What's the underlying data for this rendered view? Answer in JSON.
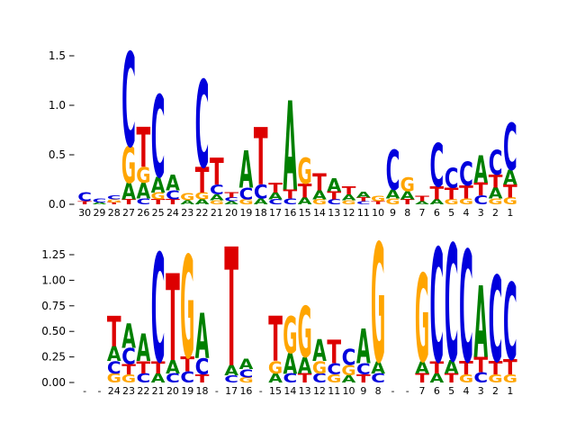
{
  "figure_title": "",
  "chart_style": {
    "background": "#ffffff",
    "tick_color": "#000000",
    "colors": {
      "A": "#008000",
      "C": "#0000dd",
      "G": "#ffa500",
      "T": "#dd0000"
    }
  },
  "chart_data": [
    {
      "type": "sequence_logo",
      "title": "",
      "xlabel": "",
      "ylabel": "",
      "ylim": [
        0,
        1.6
      ],
      "grid": false,
      "legend": "none",
      "yticks": [
        {
          "label": "0.0",
          "value": 0.0
        },
        {
          "label": "0.5",
          "value": 0.5
        },
        {
          "label": "1.0",
          "value": 1.0
        },
        {
          "label": "1.5",
          "value": 1.5
        }
      ],
      "positions": [
        {
          "label": "30",
          "stack": [
            [
              "T",
              0.03
            ],
            [
              "C",
              0.09
            ]
          ]
        },
        {
          "label": "29",
          "stack": [
            [
              "A",
              0.02
            ],
            [
              "C",
              0.04
            ]
          ]
        },
        {
          "label": "28",
          "stack": [
            [
              "T",
              0.02
            ],
            [
              "G",
              0.03
            ],
            [
              "C",
              0.04
            ]
          ]
        },
        {
          "label": "27",
          "stack": [
            [
              "T",
              0.05
            ],
            [
              "A",
              0.17
            ],
            [
              "G",
              0.37
            ],
            [
              "C",
              0.95
            ]
          ]
        },
        {
          "label": "26",
          "stack": [
            [
              "C",
              0.06
            ],
            [
              "A",
              0.16
            ],
            [
              "G",
              0.16
            ],
            [
              "T",
              0.4
            ]
          ]
        },
        {
          "label": "25",
          "stack": [
            [
              "T",
              0.05
            ],
            [
              "G",
              0.07
            ],
            [
              "A",
              0.16
            ],
            [
              "C",
              0.83
            ]
          ]
        },
        {
          "label": "24",
          "stack": [
            [
              "T",
              0.05
            ],
            [
              "C",
              0.09
            ],
            [
              "A",
              0.16
            ]
          ]
        },
        {
          "label": "23",
          "stack": [
            [
              "A",
              0.04
            ],
            [
              "G",
              0.07
            ]
          ]
        },
        {
          "label": "22",
          "stack": [
            [
              "A",
              0.05
            ],
            [
              "G",
              0.07
            ],
            [
              "T",
              0.26
            ],
            [
              "C",
              0.88
            ]
          ]
        },
        {
          "label": "21",
          "stack": [
            [
              "G",
              0.04
            ],
            [
              "A",
              0.06
            ],
            [
              "C",
              0.1
            ],
            [
              "T",
              0.27
            ]
          ]
        },
        {
          "label": "20",
          "stack": [
            [
              "A",
              0.03
            ],
            [
              "C",
              0.04
            ],
            [
              "T",
              0.05
            ]
          ]
        },
        {
          "label": "19",
          "stack": [
            [
              "G",
              0.05
            ],
            [
              "C",
              0.12
            ],
            [
              "A",
              0.38
            ]
          ]
        },
        {
          "label": "18",
          "stack": [
            [
              "A",
              0.06
            ],
            [
              "C",
              0.14
            ],
            [
              "T",
              0.58
            ]
          ]
        },
        {
          "label": "17",
          "stack": [
            [
              "C",
              0.05
            ],
            [
              "A",
              0.07
            ],
            [
              "T",
              0.1
            ]
          ]
        },
        {
          "label": "16",
          "stack": [
            [
              "C",
              0.06
            ],
            [
              "T",
              0.09
            ],
            [
              "A",
              0.9
            ]
          ]
        },
        {
          "label": "15",
          "stack": [
            [
              "A",
              0.07
            ],
            [
              "T",
              0.14
            ],
            [
              "G",
              0.26
            ]
          ]
        },
        {
          "label": "14",
          "stack": [
            [
              "G",
              0.05
            ],
            [
              "A",
              0.09
            ],
            [
              "T",
              0.17
            ]
          ]
        },
        {
          "label": "13",
          "stack": [
            [
              "C",
              0.05
            ],
            [
              "T",
              0.08
            ],
            [
              "A",
              0.13
            ]
          ]
        },
        {
          "label": "12",
          "stack": [
            [
              "G",
              0.04
            ],
            [
              "A",
              0.06
            ],
            [
              "T",
              0.08
            ]
          ]
        },
        {
          "label": "11",
          "stack": [
            [
              "C",
              0.03
            ],
            [
              "T",
              0.04
            ],
            [
              "A",
              0.06
            ]
          ]
        },
        {
          "label": "10",
          "stack": [
            [
              "T",
              0.03
            ],
            [
              "G",
              0.05
            ]
          ]
        },
        {
          "label": "9",
          "stack": [
            [
              "G",
              0.06
            ],
            [
              "A",
              0.09
            ],
            [
              "C",
              0.4
            ]
          ]
        },
        {
          "label": "8",
          "stack": [
            [
              "T",
              0.05
            ],
            [
              "A",
              0.08
            ],
            [
              "G",
              0.14
            ]
          ]
        },
        {
          "label": "7",
          "stack": [
            [
              "A",
              0.03
            ],
            [
              "T",
              0.05
            ]
          ]
        },
        {
          "label": "6",
          "stack": [
            [
              "A",
              0.05
            ],
            [
              "T",
              0.13
            ],
            [
              "C",
              0.44
            ]
          ]
        },
        {
          "label": "5",
          "stack": [
            [
              "G",
              0.05
            ],
            [
              "T",
              0.12
            ],
            [
              "C",
              0.2
            ]
          ]
        },
        {
          "label": "4",
          "stack": [
            [
              "G",
              0.06
            ],
            [
              "T",
              0.13
            ],
            [
              "C",
              0.24
            ]
          ]
        },
        {
          "label": "3",
          "stack": [
            [
              "C",
              0.09
            ],
            [
              "T",
              0.13
            ],
            [
              "A",
              0.28
            ]
          ]
        },
        {
          "label": "2",
          "stack": [
            [
              "G",
              0.06
            ],
            [
              "A",
              0.11
            ],
            [
              "T",
              0.13
            ],
            [
              "C",
              0.25
            ]
          ]
        },
        {
          "label": "1",
          "stack": [
            [
              "G",
              0.07
            ],
            [
              "T",
              0.13
            ],
            [
              "A",
              0.15
            ],
            [
              "C",
              0.47
            ]
          ]
        }
      ]
    },
    {
      "type": "sequence_logo",
      "title": "",
      "xlabel": "",
      "ylabel": "",
      "ylim": [
        0,
        1.45
      ],
      "grid": false,
      "legend": "none",
      "yticks": [
        {
          "label": "0.00",
          "value": 0.0
        },
        {
          "label": "0.25",
          "value": 0.25
        },
        {
          "label": "0.50",
          "value": 0.5
        },
        {
          "label": "0.75",
          "value": 0.75
        },
        {
          "label": "1.00",
          "value": 1.0
        },
        {
          "label": "1.25",
          "value": 1.25
        }
      ],
      "positions": [
        {
          "label": "-",
          "stack": []
        },
        {
          "label": "-",
          "stack": []
        },
        {
          "label": "24",
          "stack": [
            [
              "G",
              0.09
            ],
            [
              "C",
              0.12
            ],
            [
              "A",
              0.14
            ],
            [
              "T",
              0.3
            ]
          ]
        },
        {
          "label": "23",
          "stack": [
            [
              "G",
              0.08
            ],
            [
              "T",
              0.1
            ],
            [
              "C",
              0.16
            ],
            [
              "A",
              0.24
            ]
          ]
        },
        {
          "label": "22",
          "stack": [
            [
              "C",
              0.09
            ],
            [
              "T",
              0.12
            ],
            [
              "A",
              0.27
            ]
          ]
        },
        {
          "label": "21",
          "stack": [
            [
              "A",
              0.09
            ],
            [
              "T",
              0.12
            ],
            [
              "C",
              1.06
            ]
          ]
        },
        {
          "label": "20",
          "stack": [
            [
              "C",
              0.09
            ],
            [
              "A",
              0.13
            ],
            [
              "T",
              0.85
            ]
          ]
        },
        {
          "label": "19",
          "stack": [
            [
              "C",
              0.11
            ],
            [
              "T",
              0.14
            ],
            [
              "G",
              1.0
            ]
          ]
        },
        {
          "label": "18",
          "stack": [
            [
              "T",
              0.08
            ],
            [
              "C",
              0.16
            ],
            [
              "A",
              0.44
            ]
          ]
        },
        {
          "label": "-",
          "stack": []
        },
        {
          "label": "17",
          "stack": [
            [
              "C",
              0.07
            ],
            [
              "A",
              0.1
            ],
            [
              "T",
              1.16
            ]
          ]
        },
        {
          "label": "16",
          "stack": [
            [
              "G",
              0.05
            ],
            [
              "C",
              0.08
            ],
            [
              "A",
              0.1
            ]
          ]
        },
        {
          "label": "-",
          "stack": []
        },
        {
          "label": "15",
          "stack": [
            [
              "A",
              0.09
            ],
            [
              "G",
              0.12
            ],
            [
              "T",
              0.44
            ]
          ]
        },
        {
          "label": "14",
          "stack": [
            [
              "C",
              0.09
            ],
            [
              "A",
              0.2
            ],
            [
              "G",
              0.36
            ]
          ]
        },
        {
          "label": "13",
          "stack": [
            [
              "T",
              0.09
            ],
            [
              "A",
              0.16
            ],
            [
              "G",
              0.5
            ]
          ]
        },
        {
          "label": "12",
          "stack": [
            [
              "C",
              0.09
            ],
            [
              "G",
              0.12
            ],
            [
              "A",
              0.21
            ]
          ]
        },
        {
          "label": "11",
          "stack": [
            [
              "G",
              0.08
            ],
            [
              "C",
              0.11
            ],
            [
              "T",
              0.23
            ]
          ]
        },
        {
          "label": "10",
          "stack": [
            [
              "A",
              0.07
            ],
            [
              "G",
              0.1
            ],
            [
              "C",
              0.16
            ]
          ]
        },
        {
          "label": "9",
          "stack": [
            [
              "T",
              0.08
            ],
            [
              "C",
              0.11
            ],
            [
              "A",
              0.34
            ]
          ]
        },
        {
          "label": "8",
          "stack": [
            [
              "C",
              0.09
            ],
            [
              "A",
              0.12
            ],
            [
              "G",
              1.16
            ]
          ]
        },
        {
          "label": "-",
          "stack": []
        },
        {
          "label": "-",
          "stack": []
        },
        {
          "label": "7",
          "stack": [
            [
              "T",
              0.09
            ],
            [
              "A",
              0.12
            ],
            [
              "G",
              0.86
            ]
          ]
        },
        {
          "label": "6",
          "stack": [
            [
              "A",
              0.09
            ],
            [
              "T",
              0.12
            ],
            [
              "C",
              1.11
            ]
          ]
        },
        {
          "label": "5",
          "stack": [
            [
              "T",
              0.09
            ],
            [
              "A",
              0.13
            ],
            [
              "C",
              1.14
            ]
          ]
        },
        {
          "label": "4",
          "stack": [
            [
              "G",
              0.08
            ],
            [
              "T",
              0.13
            ],
            [
              "C",
              1.09
            ]
          ]
        },
        {
          "label": "3",
          "stack": [
            [
              "C",
              0.1
            ],
            [
              "T",
              0.15
            ],
            [
              "A",
              0.7
            ]
          ]
        },
        {
          "label": "2",
          "stack": [
            [
              "G",
              0.08
            ],
            [
              "T",
              0.13
            ],
            [
              "C",
              0.84
            ]
          ]
        },
        {
          "label": "1",
          "stack": [
            [
              "G",
              0.08
            ],
            [
              "T",
              0.15
            ],
            [
              "C",
              0.75
            ]
          ]
        }
      ]
    }
  ]
}
